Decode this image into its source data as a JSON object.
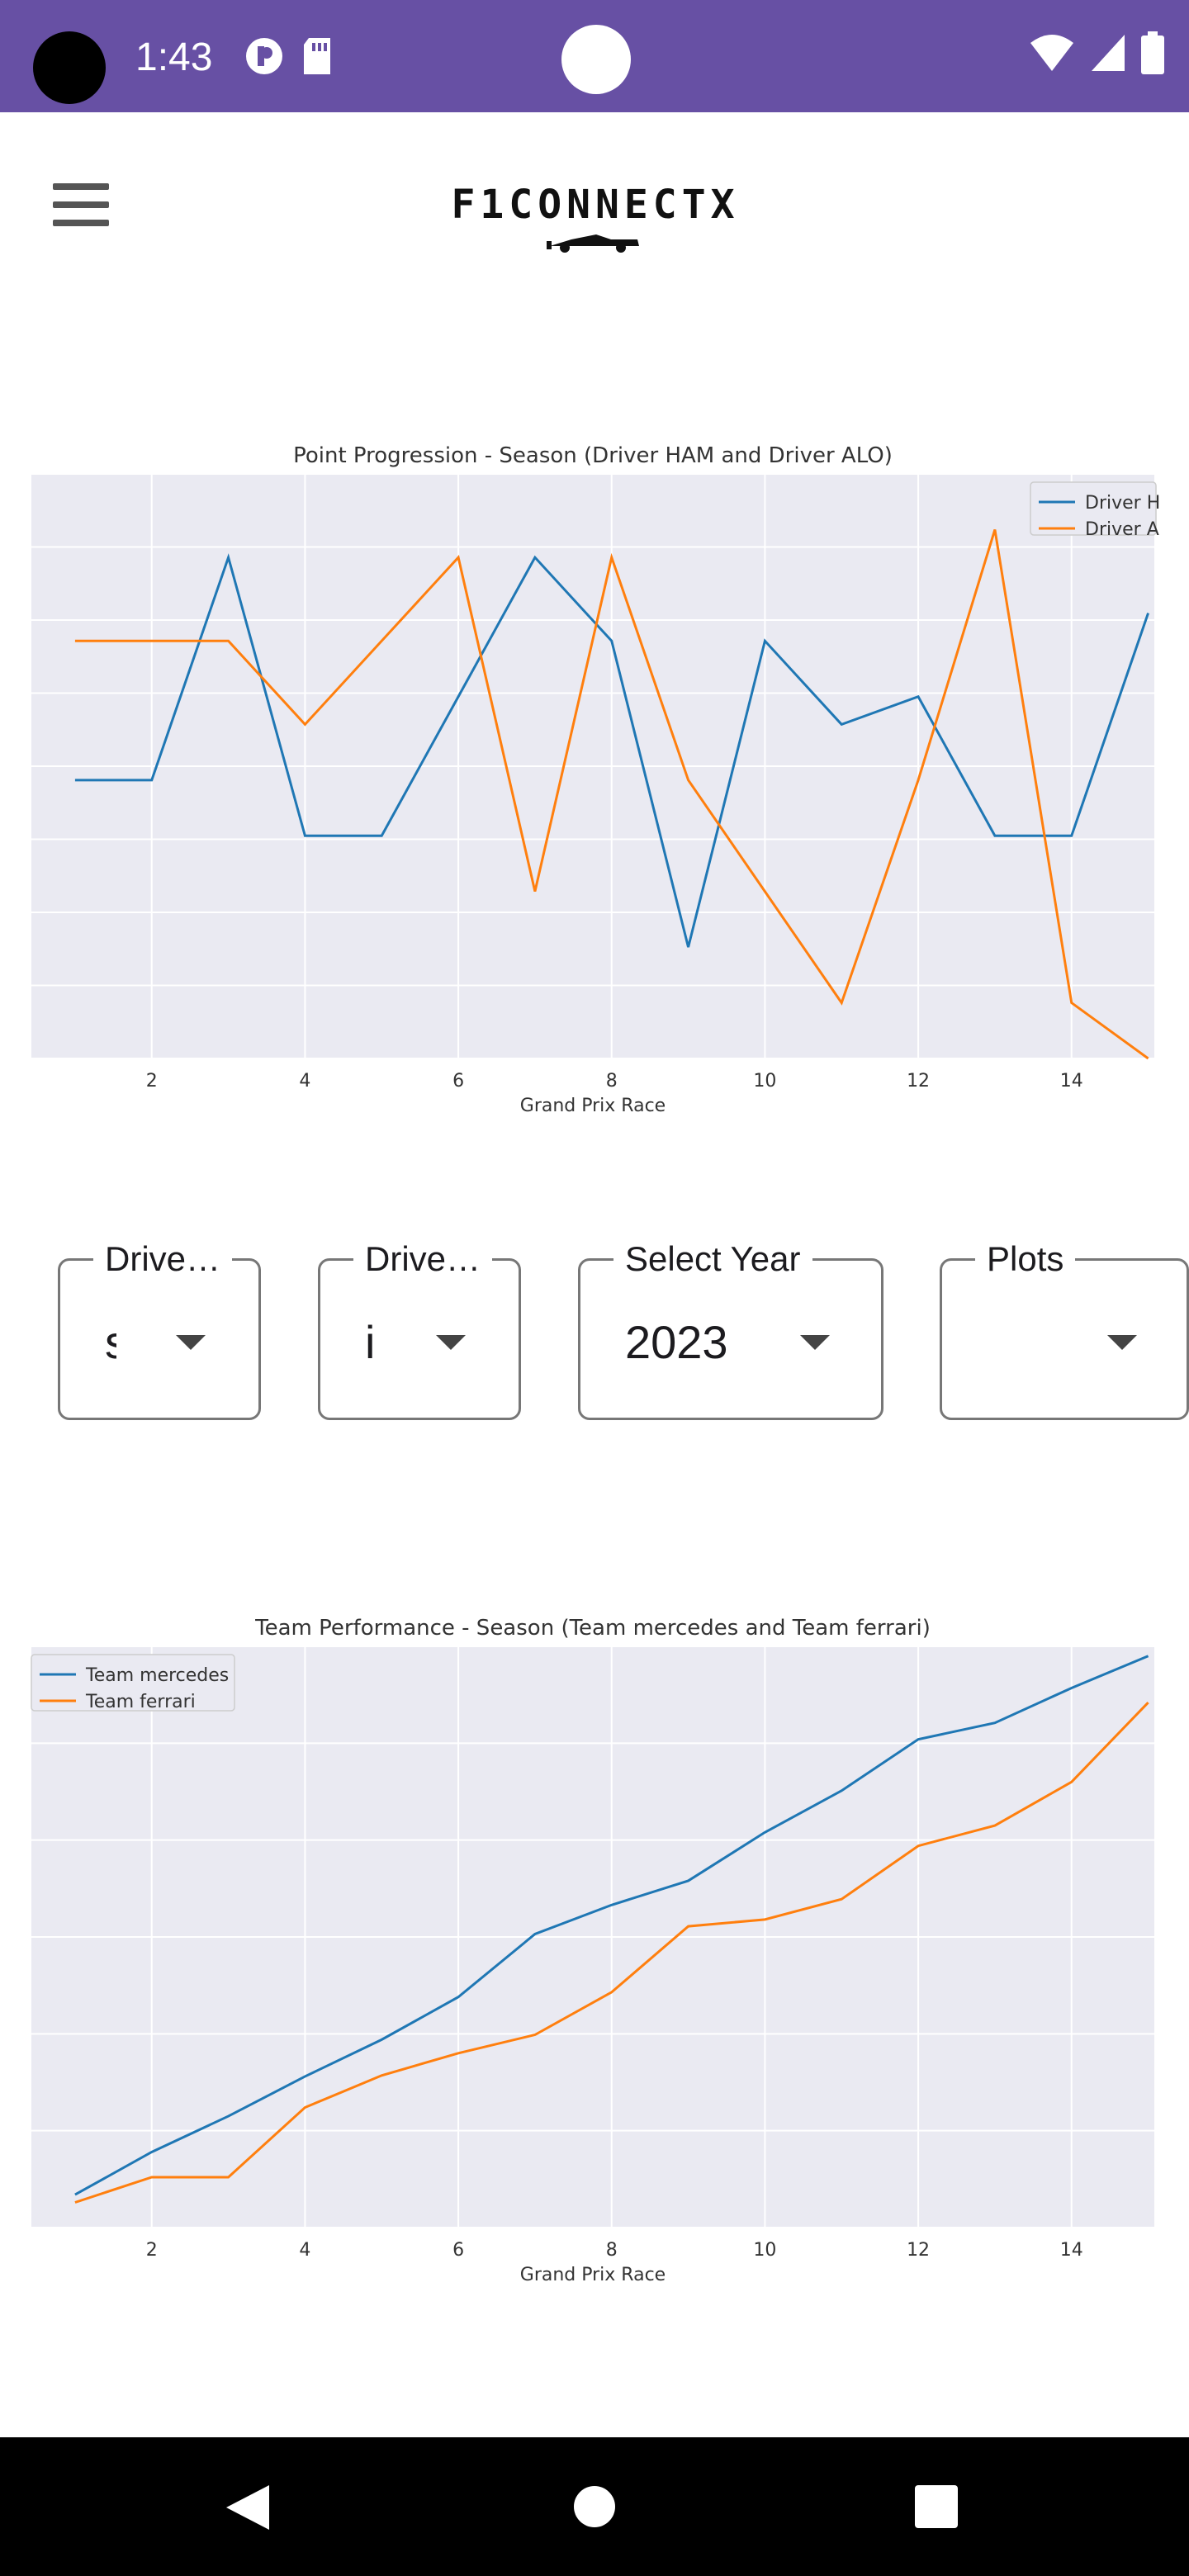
{
  "status_bar": {
    "time": "1:43",
    "icons": [
      "record-icon",
      "sd-card-icon",
      "wifi-icon",
      "signal-icon",
      "battery-icon"
    ]
  },
  "app_bar": {
    "logo_text": "F1CONNECTX",
    "menu_icon": "hamburger-menu-icon"
  },
  "chart_data": [
    {
      "type": "line",
      "title": "Point Progression - Season (Driver HAM and Driver ALO)",
      "xlabel": "Grand Prix Race",
      "ylabel": "",
      "x": [
        1,
        2,
        3,
        4,
        5,
        6,
        7,
        8,
        9,
        10,
        11,
        12,
        13,
        14,
        15
      ],
      "x_ticks": [
        2,
        4,
        6,
        8,
        10,
        12,
        14
      ],
      "ylim": [
        0,
        10.5
      ],
      "grid": true,
      "legend": "top-right",
      "series": [
        {
          "name": "Driver HAM",
          "color": "#1f77b4",
          "values": [
            5,
            5,
            9,
            4,
            4,
            6.5,
            9,
            7.5,
            2,
            7.5,
            6,
            6.5,
            4,
            4,
            8
          ]
        },
        {
          "name": "Driver ALO",
          "color": "#ff7f0e",
          "values": [
            7.5,
            7.5,
            7.5,
            6,
            7.5,
            9,
            3,
            9,
            5,
            3,
            1,
            5,
            9.5,
            1,
            0
          ]
        }
      ],
      "legend_labels_visible": [
        "Driver H",
        "Driver A"
      ]
    },
    {
      "type": "line",
      "title": "Team Performance - Season (Team mercedes and Team ferrari)",
      "xlabel": "Grand Prix Race",
      "ylabel": "",
      "x": [
        1,
        2,
        3,
        4,
        5,
        6,
        7,
        8,
        9,
        10,
        11,
        12,
        13,
        14,
        15
      ],
      "x_ticks": [
        2,
        4,
        6,
        8,
        10,
        12,
        14
      ],
      "ylim": [
        0,
        600
      ],
      "grid": true,
      "legend": "top-left",
      "series": [
        {
          "name": "Team mercedes",
          "color": "#1f77b4",
          "values": [
            34,
            78,
            115,
            156,
            194,
            238,
            303,
            333,
            358,
            408,
            451,
            504,
            521,
            557,
            590
          ]
        },
        {
          "name": "Team ferrari",
          "color": "#ff7f0e",
          "values": [
            26,
            52,
            52,
            124,
            157,
            180,
            199,
            243,
            311,
            318,
            339,
            394,
            415,
            460,
            542
          ]
        }
      ]
    }
  ],
  "dropdowns": [
    {
      "label": "Drive…",
      "value": "s"
    },
    {
      "label": "Drive…",
      "value": "i"
    },
    {
      "label": "Select Year",
      "value": "2023"
    },
    {
      "label": "Plots",
      "value": ""
    }
  ]
}
